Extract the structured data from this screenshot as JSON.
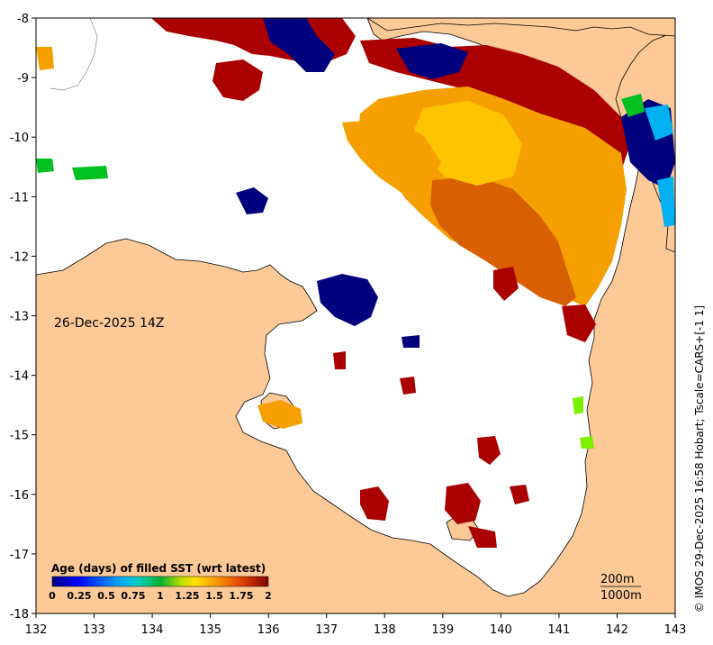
{
  "map": {
    "date_label": "26-Dec-2025 14Z",
    "credit": "© IMOS 29-Dec-2025 16:58 Hobart; Tscale=CARS+[-1 1]",
    "contour_labels": [
      "200m",
      "1000m"
    ],
    "land_color": "#fcc997",
    "water_color": "#ffffff",
    "lon_ticks": [
      "132",
      "133",
      "134",
      "135",
      "136",
      "137",
      "138",
      "139",
      "140",
      "141",
      "142",
      "143"
    ],
    "lat_ticks": [
      "-8",
      "-9",
      "-10",
      "-11",
      "-12",
      "-13",
      "-14",
      "-15",
      "-16",
      "-17",
      "-18"
    ],
    "lon_range": [
      132,
      143
    ],
    "lat_range": [
      -8,
      -18
    ]
  },
  "legend": {
    "title": "Age (days) of filled SST (wrt latest)",
    "ticks": [
      "0",
      "0.25",
      "0.5",
      "0.75",
      "1",
      "1.25",
      "1.5",
      "1.75",
      "2"
    ],
    "range": [
      0,
      2
    ]
  },
  "colors": {
    "age_0": "#00007f",
    "age_05": "#00b0f0",
    "age_1": "#00c020",
    "age_125": "#ffd400",
    "age_15": "#f5a000",
    "age_175": "#d86000",
    "age_2": "#aa0000"
  }
}
